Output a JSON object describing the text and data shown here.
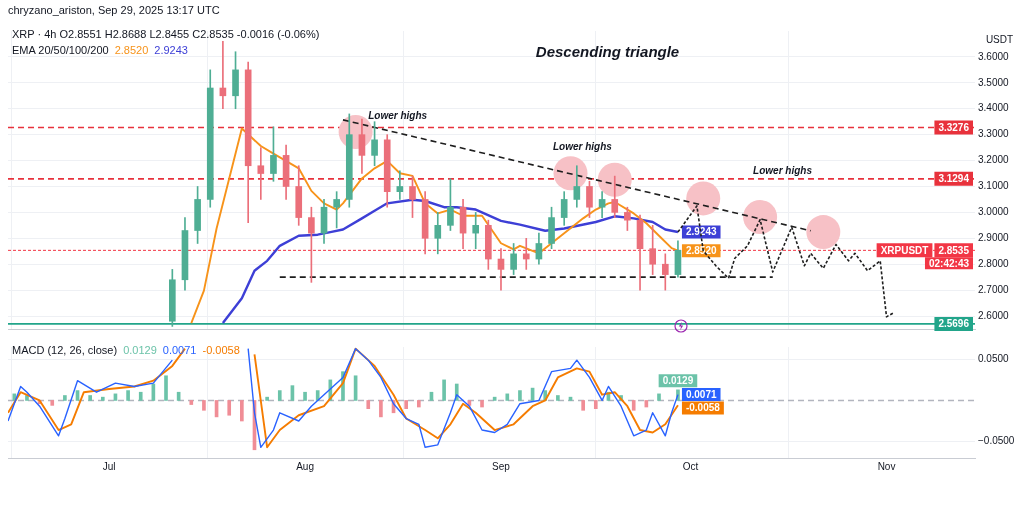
{
  "chart_data": [
    {
      "type": "candlestick",
      "title": "Descending triangle",
      "subtitle": "XRP · 4h  O2.8551 H2.8688 L2.8455 C2.8535 -0.0016 (-0.06%)",
      "legend_title": "EMA 20/50/100/200",
      "ylabel": "USDT",
      "x": [
        "2025-07-11",
        "2025-07-13",
        "2025-07-15",
        "2025-07-17",
        "2025-07-19",
        "2025-07-21",
        "2025-07-23",
        "2025-07-25",
        "2025-07-27",
        "2025-07-29",
        "2025-07-31",
        "2025-08-02",
        "2025-08-04",
        "2025-08-06",
        "2025-08-08",
        "2025-08-10",
        "2025-08-12",
        "2025-08-14",
        "2025-08-16",
        "2025-08-18",
        "2025-08-20",
        "2025-08-22",
        "2025-08-24",
        "2025-08-26",
        "2025-08-28",
        "2025-08-30",
        "2025-09-01",
        "2025-09-03",
        "2025-09-05",
        "2025-09-07",
        "2025-09-09",
        "2025-09-11",
        "2025-09-13",
        "2025-09-15",
        "2025-09-17",
        "2025-09-19",
        "2025-09-21",
        "2025-09-23",
        "2025-09-25",
        "2025-09-27",
        "2025-09-29"
      ],
      "ohlc": [
        [
          2.58,
          2.78,
          2.56,
          2.74
        ],
        [
          2.74,
          2.98,
          2.7,
          2.93
        ],
        [
          2.93,
          3.1,
          2.88,
          3.05
        ],
        [
          3.05,
          3.55,
          3.02,
          3.48
        ],
        [
          3.48,
          3.66,
          3.4,
          3.45
        ],
        [
          3.45,
          3.62,
          3.4,
          3.55
        ],
        [
          3.55,
          3.58,
          2.96,
          3.18
        ],
        [
          3.18,
          3.25,
          3.05,
          3.15
        ],
        [
          3.15,
          3.33,
          3.12,
          3.22
        ],
        [
          3.22,
          3.26,
          3.05,
          3.1
        ],
        [
          3.1,
          3.18,
          2.95,
          2.98
        ],
        [
          2.98,
          3.02,
          2.73,
          2.92
        ],
        [
          2.92,
          3.05,
          2.88,
          3.02
        ],
        [
          3.02,
          3.08,
          2.94,
          3.05
        ],
        [
          3.05,
          3.38,
          3.02,
          3.3
        ],
        [
          3.3,
          3.36,
          3.15,
          3.22
        ],
        [
          3.22,
          3.35,
          3.18,
          3.28
        ],
        [
          3.28,
          3.3,
          3.02,
          3.08
        ],
        [
          3.08,
          3.16,
          3.05,
          3.1
        ],
        [
          3.1,
          3.14,
          2.98,
          3.05
        ],
        [
          3.05,
          3.08,
          2.84,
          2.9
        ],
        [
          2.9,
          3.0,
          2.84,
          2.95
        ],
        [
          2.95,
          3.13,
          2.93,
          3.02
        ],
        [
          3.02,
          3.05,
          2.86,
          2.92
        ],
        [
          2.92,
          3.0,
          2.86,
          2.95
        ],
        [
          2.95,
          2.97,
          2.78,
          2.82
        ],
        [
          2.82,
          2.86,
          2.7,
          2.78
        ],
        [
          2.78,
          2.88,
          2.76,
          2.84
        ],
        [
          2.84,
          2.9,
          2.78,
          2.82
        ],
        [
          2.82,
          2.92,
          2.8,
          2.88
        ],
        [
          2.88,
          3.02,
          2.86,
          2.98
        ],
        [
          2.98,
          3.08,
          2.95,
          3.05
        ],
        [
          3.05,
          3.18,
          3.02,
          3.1
        ],
        [
          3.1,
          3.12,
          2.98,
          3.02
        ],
        [
          3.02,
          3.08,
          2.98,
          3.05
        ],
        [
          3.05,
          3.14,
          2.98,
          3.0
        ],
        [
          3.0,
          3.02,
          2.93,
          2.97
        ],
        [
          2.97,
          2.99,
          2.7,
          2.86
        ],
        [
          2.86,
          2.95,
          2.76,
          2.8
        ],
        [
          2.8,
          2.84,
          2.7,
          2.76
        ],
        [
          2.76,
          2.89,
          2.75,
          2.8535
        ]
      ],
      "colors": [
        "#4fae94",
        "#4fae94",
        "#4fae94",
        "#4fae94",
        "#eb6f7a",
        "#4fae94",
        "#eb6f7a",
        "#eb6f7a",
        "#4fae94",
        "#eb6f7a",
        "#eb6f7a",
        "#eb6f7a",
        "#4fae94",
        "#4fae94",
        "#4fae94",
        "#eb6f7a",
        "#4fae94",
        "#eb6f7a",
        "#4fae94",
        "#eb6f7a",
        "#eb6f7a",
        "#4fae94",
        "#4fae94",
        "#eb6f7a",
        "#4fae94",
        "#eb6f7a",
        "#eb6f7a",
        "#4fae94",
        "#eb6f7a",
        "#4fae94",
        "#4fae94",
        "#4fae94",
        "#4fae94",
        "#eb6f7a",
        "#4fae94",
        "#eb6f7a",
        "#eb6f7a",
        "#eb6f7a",
        "#eb6f7a",
        "#eb6f7a",
        "#4fae94"
      ],
      "series": [
        {
          "type": "scatter",
          "marker": "circle",
          "color": "#f7c1c6",
          "x": [
            "2025-08-09",
            "2025-09-12",
            "2025-09-19",
            "2025-10-03",
            "2025-10-12",
            "2025-10-22"
          ],
          "values": [
            3.31,
            3.151,
            3.126,
            3.054,
            2.982,
            2.924
          ]
        },
        {
          "type": "line",
          "color": "#f7931a",
          "x": [
            "2025-07-14",
            "2025-07-16",
            "2025-07-18",
            "2025-07-20",
            "2025-07-22",
            "2025-07-25",
            "2025-07-27",
            "2025-07-31",
            "2025-08-02",
            "2025-08-04",
            "2025-08-06",
            "2025-08-07",
            "2025-08-10",
            "2025-08-12",
            "2025-08-14",
            "2025-08-16",
            "2025-08-18",
            "2025-08-20",
            "2025-08-22",
            "2025-08-24",
            "2025-08-26",
            "2025-08-29",
            "2025-09-01",
            "2025-09-03",
            "2025-09-04",
            "2025-09-07",
            "2025-09-10",
            "2025-09-14",
            "2025-09-16",
            "2025-09-18",
            "2025-09-19",
            "2025-09-22",
            "2025-09-24",
            "2025-09-26",
            "2025-09-28",
            "2025-09-29"
          ],
          "values": [
            2.573,
            2.698,
            2.938,
            3.131,
            3.324,
            3.256,
            3.227,
            3.17,
            3.083,
            3.035,
            3.011,
            3.035,
            3.131,
            3.17,
            3.199,
            3.151,
            3.141,
            3.035,
            2.996,
            3.011,
            2.987,
            2.987,
            2.881,
            2.857,
            2.871,
            2.842,
            2.9,
            2.977,
            3.011,
            3.035,
            3.04,
            2.996,
            2.958,
            2.91,
            2.862,
            2.852
          ],
          "value_labels": [
            null,
            null,
            null,
            null,
            null,
            null,
            null,
            null,
            null,
            null,
            null,
            null,
            null,
            null,
            null,
            null,
            null,
            null,
            null,
            null,
            null,
            null,
            null,
            null,
            null,
            null,
            null,
            null,
            null,
            null,
            null,
            null,
            null,
            null,
            null,
            "2.8520"
          ]
        },
        {
          "type": "line",
          "color": "#3d3fd6",
          "x": [
            "2025-07-19",
            "2025-07-22",
            "2025-07-24",
            "2025-07-26",
            "2025-07-28",
            "2025-07-31",
            "2025-08-03",
            "2025-08-05",
            "2025-08-07",
            "2025-08-10",
            "2025-08-12",
            "2025-08-14",
            "2025-08-18",
            "2025-08-20",
            "2025-08-23",
            "2025-08-25",
            "2025-08-28",
            "2025-09-01",
            "2025-09-04",
            "2025-09-08",
            "2025-09-11",
            "2025-09-16",
            "2025-09-19",
            "2025-09-22",
            "2025-09-25",
            "2025-09-27",
            "2025-09-29"
          ],
          "values": [
            2.573,
            2.669,
            2.775,
            2.813,
            2.871,
            2.91,
            2.914,
            2.924,
            2.934,
            2.977,
            3.006,
            3.035,
            3.049,
            3.044,
            3.02,
            3.02,
            3.011,
            2.967,
            2.953,
            2.929,
            2.938,
            2.963,
            2.985,
            2.977,
            2.963,
            2.934,
            2.9243
          ],
          "value_labels": [
            null,
            null,
            null,
            null,
            null,
            null,
            null,
            null,
            null,
            null,
            null,
            null,
            null,
            null,
            null,
            null,
            null,
            null,
            null,
            null,
            null,
            null,
            null,
            null,
            null,
            null,
            "2.9243"
          ]
        },
        {
          "type": "line",
          "color": "#1e1e1e",
          "line_style": "dashed",
          "x": [
            "2025-08-07",
            "2025-10-20"
          ],
          "values": [
            3.357,
            2.929
          ]
        },
        {
          "type": "line",
          "color": "#1e1e1e",
          "line_style": "dashed",
          "x": [
            "2025-07-28",
            "2025-10-14"
          ],
          "values": [
            2.75,
            2.75
          ]
        },
        {
          "type": "line",
          "color": "#1e1e1e",
          "line_style": "dotted",
          "x": [
            "2025-09-29",
            "2025-10-02",
            "2025-10-03",
            "2025-10-05",
            "2025-10-07",
            "2025-10-08",
            "2025-10-10",
            "2025-10-12",
            "2025-10-14",
            "2025-10-17",
            "2025-10-19",
            "2025-10-20",
            "2025-10-22",
            "2025-10-24",
            "2025-10-26",
            "2025-10-27",
            "2025-10-29",
            "2025-10-31",
            "2025-11-01",
            "2025-11-02"
          ],
          "values": [
            2.924,
            3.025,
            2.852,
            2.794,
            2.746,
            2.823,
            2.871,
            2.972,
            2.77,
            2.943,
            2.794,
            2.842,
            2.784,
            2.876,
            2.813,
            2.842,
            2.775,
            2.813,
            2.597,
            2.611
          ]
        }
      ],
      "xlim": [
        "2025-06-15",
        "2025-11-15"
      ],
      "xticks": [
        {
          "value": "2025-07-01",
          "label": null
        },
        {
          "value": "2025-08-01",
          "label": null
        },
        {
          "value": "2025-09-01",
          "label": null
        },
        {
          "value": "2025-10-01",
          "label": null
        },
        {
          "value": "2025-11-01",
          "label": null
        }
      ],
      "ylim": [
        2.55,
        3.7
      ],
      "yticks": [
        {
          "value": 2.6,
          "label": "2.6000"
        },
        {
          "value": 2.7,
          "label": "2.7000"
        },
        {
          "value": 2.8,
          "label": "2.8000"
        },
        {
          "value": 2.9,
          "label": "2.9000"
        },
        {
          "value": 3.0,
          "label": "3.0000"
        },
        {
          "value": 3.1,
          "label": "3.1000"
        },
        {
          "value": 3.2,
          "label": "3.2000"
        },
        {
          "value": 3.3,
          "label": "3.3000"
        },
        {
          "value": 3.4,
          "label": "3.4000"
        },
        {
          "value": 3.5,
          "label": "3.5000"
        },
        {
          "value": 3.6,
          "label": "3.6000"
        }
      ],
      "ref_lines": [
        {
          "axis": "y",
          "value": 3.3276,
          "label": "3.3276",
          "color": "#e8323c",
          "line_style": "dashed"
        },
        {
          "axis": "y",
          "value": 3.1294,
          "label": "3.1294",
          "color": "#e8323c",
          "line_style": "dashed"
        },
        {
          "axis": "y",
          "value": 2.5696,
          "label": "2.5696",
          "color": "#22a58a",
          "line_style": "solid"
        },
        {
          "axis": "y",
          "value": 2.8535,
          "label": "2.8535",
          "color": "#f23645",
          "line_style": "dotted"
        }
      ],
      "annotations": [
        "chryzano_ariston, Sep 29, 2025 13:17 UTC",
        "XRPUSDT",
        "02:42:43",
        "Lower highs",
        "Lower highs",
        "Lower highs"
      ],
      "grid": true,
      "tick_labels": "y"
    },
    {
      "type": "bar",
      "legend_title": "MACD (12, 26, close)",
      "x": [
        "2025-06-16",
        "2025-06-18",
        "2025-06-20",
        "2025-06-22",
        "2025-06-24",
        "2025-06-26",
        "2025-06-28",
        "2025-06-30",
        "2025-07-02",
        "2025-07-04",
        "2025-07-06",
        "2025-07-08",
        "2025-07-10",
        "2025-07-12",
        "2025-07-14",
        "2025-07-16",
        "2025-07-18",
        "2025-07-20",
        "2025-07-22",
        "2025-07-24",
        "2025-07-26",
        "2025-07-28",
        "2025-07-30",
        "2025-08-01",
        "2025-08-03",
        "2025-08-05",
        "2025-08-07",
        "2025-08-09",
        "2025-08-11",
        "2025-08-13",
        "2025-08-15",
        "2025-08-17",
        "2025-08-19",
        "2025-08-21",
        "2025-08-23",
        "2025-08-25",
        "2025-08-27",
        "2025-08-29",
        "2025-08-31",
        "2025-09-02",
        "2025-09-04",
        "2025-09-06",
        "2025-09-08",
        "2025-09-10",
        "2025-09-12",
        "2025-09-14",
        "2025-09-16",
        "2025-09-18",
        "2025-09-20",
        "2025-09-22",
        "2025-09-24",
        "2025-09-26",
        "2025-09-29"
      ],
      "values": [
        0.008,
        0.006,
        -0.004,
        -0.006,
        0.006,
        0.012,
        0.006,
        0.004,
        0.008,
        0.012,
        0.01,
        0.02,
        0.03,
        0.01,
        -0.005,
        -0.012,
        -0.02,
        -0.018,
        -0.025,
        -0.06,
        0.004,
        0.012,
        0.018,
        0.01,
        0.012,
        0.025,
        0.035,
        0.03,
        -0.01,
        -0.02,
        -0.015,
        -0.01,
        -0.008,
        0.01,
        0.025,
        0.02,
        -0.006,
        -0.008,
        0.004,
        0.008,
        0.012,
        0.015,
        0.012,
        0.006,
        0.004,
        -0.012,
        -0.01,
        0.01,
        0.006,
        -0.012,
        -0.008,
        0.008,
        0.0129
      ],
      "colors": [
        "#6cc3a9",
        "#6cc3a9",
        "#f08d96",
        "#f08d96",
        "#6cc3a9",
        "#6cc3a9",
        "#6cc3a9",
        "#6cc3a9",
        "#6cc3a9",
        "#6cc3a9",
        "#6cc3a9",
        "#6cc3a9",
        "#6cc3a9",
        "#6cc3a9",
        "#f08d96",
        "#f08d96",
        "#f08d96",
        "#f08d96",
        "#f08d96",
        "#f08d96",
        "#6cc3a9",
        "#6cc3a9",
        "#6cc3a9",
        "#6cc3a9",
        "#6cc3a9",
        "#6cc3a9",
        "#6cc3a9",
        "#6cc3a9",
        "#f08d96",
        "#f08d96",
        "#f08d96",
        "#f08d96",
        "#f08d96",
        "#6cc3a9",
        "#6cc3a9",
        "#6cc3a9",
        "#f08d96",
        "#f08d96",
        "#6cc3a9",
        "#6cc3a9",
        "#6cc3a9",
        "#6cc3a9",
        "#6cc3a9",
        "#6cc3a9",
        "#6cc3a9",
        "#f08d96",
        "#f08d96",
        "#6cc3a9",
        "#6cc3a9",
        "#f08d96",
        "#f08d96",
        "#6cc3a9",
        "#6cc3a9"
      ],
      "value_labels": [
        null,
        null,
        null,
        null,
        null,
        null,
        null,
        null,
        null,
        null,
        null,
        null,
        null,
        null,
        null,
        null,
        null,
        null,
        null,
        null,
        null,
        null,
        null,
        null,
        null,
        null,
        null,
        null,
        null,
        null,
        null,
        null,
        null,
        null,
        null,
        null,
        null,
        null,
        null,
        null,
        null,
        null,
        null,
        null,
        null,
        null,
        null,
        null,
        null,
        null,
        null,
        null,
        "0.0129"
      ],
      "series": [
        {
          "type": "line",
          "color": "#2962ff",
          "x": [
            "2025-06-15",
            "2025-06-17",
            "2025-06-18",
            "2025-06-20",
            "2025-06-23",
            "2025-06-24",
            "2025-06-26",
            "2025-06-29",
            "2025-07-02",
            "2025-07-05",
            "2025-07-08",
            "2025-07-11",
            "2025-07-13",
            "2025-07-23",
            "2025-07-24",
            "2025-07-25",
            "2025-07-27",
            "2025-07-28",
            "2025-07-31",
            "2025-08-02",
            "2025-08-04",
            "2025-08-07",
            "2025-08-09",
            "2025-08-11",
            "2025-08-13",
            "2025-08-15",
            "2025-08-17",
            "2025-08-19",
            "2025-08-20",
            "2025-08-22",
            "2025-08-24",
            "2025-08-25",
            "2025-08-27",
            "2025-08-29",
            "2025-08-31",
            "2025-09-02",
            "2025-09-04",
            "2025-09-07",
            "2025-09-09",
            "2025-09-12",
            "2025-09-13",
            "2025-09-15",
            "2025-09-17",
            "2025-09-18",
            "2025-09-20",
            "2025-09-22",
            "2025-09-24",
            "2025-09-25",
            "2025-09-27",
            "2025-09-28",
            "2025-09-29"
          ],
          "values": [
            -0.025,
            0.017,
            0.01,
            -0.007,
            -0.043,
            -0.022,
            0.024,
            0.01,
            0.021,
            0.017,
            0.021,
            0.049,
            null,
            0.063,
            -0.015,
            -0.057,
            -0.036,
            -0.015,
            -0.025,
            -0.007,
            0.007,
            0.028,
            0.063,
            0.049,
            0.028,
            -0.004,
            -0.022,
            -0.029,
            -0.057,
            -0.054,
            -0.015,
            0.007,
            -0.007,
            -0.036,
            -0.039,
            -0.029,
            -0.004,
            0.0,
            0.035,
            0.039,
            0.049,
            0.028,
            0.0,
            0.017,
            -0.007,
            -0.043,
            -0.036,
            -0.015,
            -0.043,
            -0.015,
            0.0071
          ],
          "value_labels": [
            null,
            null,
            null,
            null,
            null,
            null,
            null,
            null,
            null,
            null,
            null,
            null,
            null,
            null,
            null,
            null,
            null,
            null,
            null,
            null,
            null,
            null,
            null,
            null,
            null,
            null,
            null,
            null,
            null,
            null,
            null,
            null,
            null,
            null,
            null,
            null,
            null,
            null,
            null,
            null,
            null,
            null,
            null,
            null,
            null,
            null,
            null,
            null,
            null,
            null,
            "0.0071"
          ]
        },
        {
          "type": "line",
          "color": "#f57c00",
          "x": [
            "2025-06-15",
            "2025-06-17",
            "2025-06-20",
            "2025-06-23",
            "2025-06-25",
            "2025-06-27",
            "2025-07-01",
            "2025-07-05",
            "2025-07-08",
            "2025-07-11",
            "2025-07-13",
            "2025-07-15",
            "2025-07-24",
            "2025-07-26",
            "2025-07-28",
            "2025-07-31",
            "2025-08-04",
            "2025-08-07",
            "2025-08-09",
            "2025-08-12",
            "2025-08-15",
            "2025-08-17",
            "2025-08-20",
            "2025-08-22",
            "2025-08-24",
            "2025-08-26",
            "2025-08-28",
            "2025-08-31",
            "2025-09-03",
            "2025-09-06",
            "2025-09-08",
            "2025-09-10",
            "2025-09-13",
            "2025-09-15",
            "2025-09-17",
            "2025-09-19",
            "2025-09-21",
            "2025-09-23",
            "2025-09-25",
            "2025-09-27",
            "2025-09-29"
          ],
          "values": [
            -0.015,
            0.01,
            0.0,
            -0.036,
            -0.029,
            0.01,
            0.014,
            0.017,
            0.024,
            0.042,
            0.063,
            null,
            0.056,
            -0.057,
            -0.036,
            -0.018,
            -0.007,
            0.021,
            0.063,
            0.042,
            0.007,
            -0.022,
            -0.036,
            -0.046,
            -0.029,
            -0.004,
            -0.015,
            -0.036,
            -0.029,
            -0.007,
            0.0,
            0.028,
            0.039,
            0.035,
            0.007,
            0.01,
            -0.007,
            -0.036,
            -0.039,
            -0.029,
            -0.0058
          ],
          "value_labels": [
            null,
            null,
            null,
            null,
            null,
            null,
            null,
            null,
            null,
            null,
            null,
            null,
            null,
            null,
            null,
            null,
            null,
            null,
            null,
            null,
            null,
            null,
            null,
            null,
            null,
            null,
            null,
            null,
            null,
            null,
            null,
            null,
            null,
            null,
            null,
            null,
            null,
            null,
            null,
            null,
            "-0.0058"
          ]
        }
      ],
      "xlim": [
        "2025-06-15",
        "2025-11-15"
      ],
      "xticks": [
        {
          "value": "2025-07-01",
          "label": "Jul"
        },
        {
          "value": "2025-08-01",
          "label": "Aug"
        },
        {
          "value": "2025-09-01",
          "label": "Sep"
        },
        {
          "value": "2025-10-01",
          "label": "Oct"
        },
        {
          "value": "2025-11-01",
          "label": "Nov"
        }
      ],
      "ylim": [
        -0.07,
        0.065
      ],
      "yticks": [
        {
          "value": 0.05,
          "label": "0.0500"
        },
        {
          "value": -0.05,
          "label": "−0.0500"
        }
      ],
      "ref_lines": [
        {
          "axis": "y",
          "value": 0,
          "color": "#b2b5be",
          "line_style": "dashed"
        }
      ],
      "grid": true
    }
  ]
}
